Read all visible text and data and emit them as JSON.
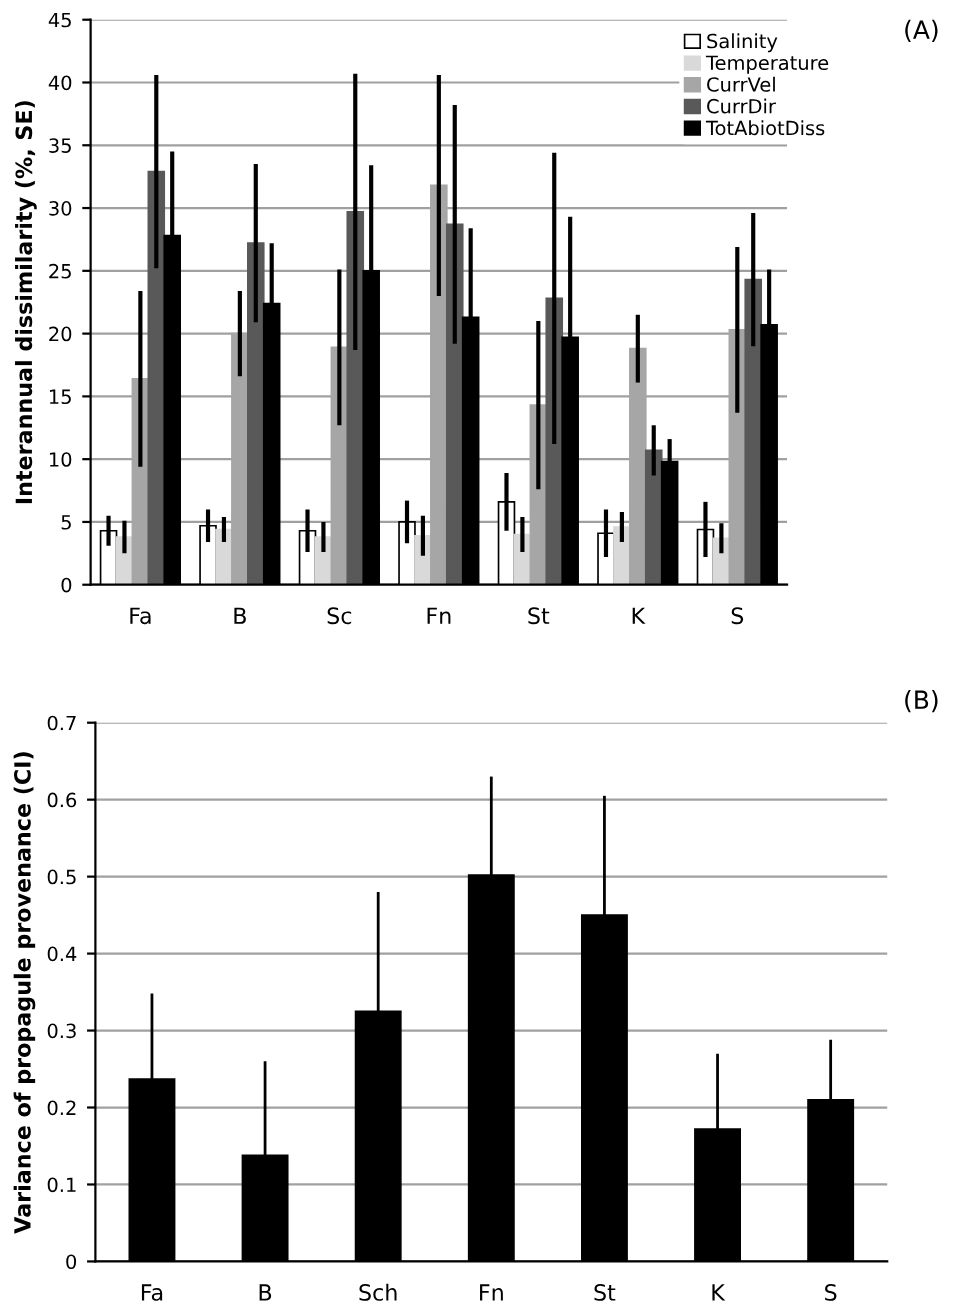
{
  "chart_data": [
    {
      "type": "bar",
      "ylabel": "Interannual dissimilarity (%, SE)",
      "categories": [
        "Fa",
        "B",
        "Sc",
        "Fn",
        "St",
        "K",
        "S"
      ],
      "ylim": [
        0,
        45
      ],
      "yticks": [
        0,
        5,
        10,
        15,
        20,
        25,
        30,
        35,
        40,
        45
      ],
      "grid": "y",
      "legend": "top right",
      "annotations": [
        "(A)"
      ],
      "series": [
        {
          "name": "Salinity",
          "color": "#ffffff",
          "values": [
            4.3,
            4.7,
            4.3,
            5.0,
            6.6,
            4.1,
            4.4
          ],
          "errors": [
            1.2,
            1.3,
            1.7,
            1.7,
            2.3,
            1.9,
            2.2
          ]
        },
        {
          "name": "Temperature",
          "color": "#d9d9d9",
          "values": [
            3.8,
            4.4,
            3.8,
            3.9,
            4.0,
            4.6,
            3.7
          ],
          "errors": [
            1.3,
            1.0,
            1.2,
            1.6,
            1.4,
            1.2,
            1.2
          ]
        },
        {
          "name": "CurrVel",
          "color": "#a6a6a6",
          "values": [
            16.4,
            20.0,
            18.9,
            31.8,
            14.3,
            18.8,
            20.3
          ],
          "errors": [
            7.0,
            3.4,
            6.2,
            8.8,
            6.7,
            2.7,
            6.6
          ]
        },
        {
          "name": "CurrDir",
          "color": "#595959",
          "values": [
            32.9,
            27.2,
            29.7,
            28.7,
            22.8,
            10.7,
            24.3
          ],
          "errors": [
            7.7,
            6.3,
            11.0,
            9.5,
            11.6,
            2.0,
            5.3
          ]
        },
        {
          "name": "TotAbiotDiss",
          "color": "#000000",
          "values": [
            27.8,
            22.4,
            25.0,
            21.3,
            19.7,
            9.8,
            20.7
          ],
          "errors": [
            6.7,
            4.8,
            8.4,
            7.1,
            9.6,
            1.8,
            4.4
          ]
        }
      ]
    },
    {
      "type": "bar",
      "ylabel": "Variance of propagule provenance (CI)",
      "categories": [
        "Fa",
        "B",
        "Sch",
        "Fn",
        "St",
        "K",
        "S"
      ],
      "ylim": [
        0,
        0.7
      ],
      "yticks": [
        0,
        0.1,
        0.2,
        0.3,
        0.4,
        0.5,
        0.6,
        0.7
      ],
      "grid": "y",
      "annotations": [
        "(B)"
      ],
      "series": [
        {
          "color": "#000000",
          "values": [
            0.237,
            0.138,
            0.325,
            0.502,
            0.45,
            0.172,
            0.21
          ],
          "errors": [
            [
              0.237,
              0.348
            ],
            [
              0.138,
              0.26
            ],
            [
              0.325,
              0.48
            ],
            [
              0.502,
              0.63
            ],
            [
              0.45,
              0.605
            ],
            [
              0.172,
              0.27
            ],
            [
              0.21,
              0.288
            ]
          ]
        }
      ]
    }
  ]
}
